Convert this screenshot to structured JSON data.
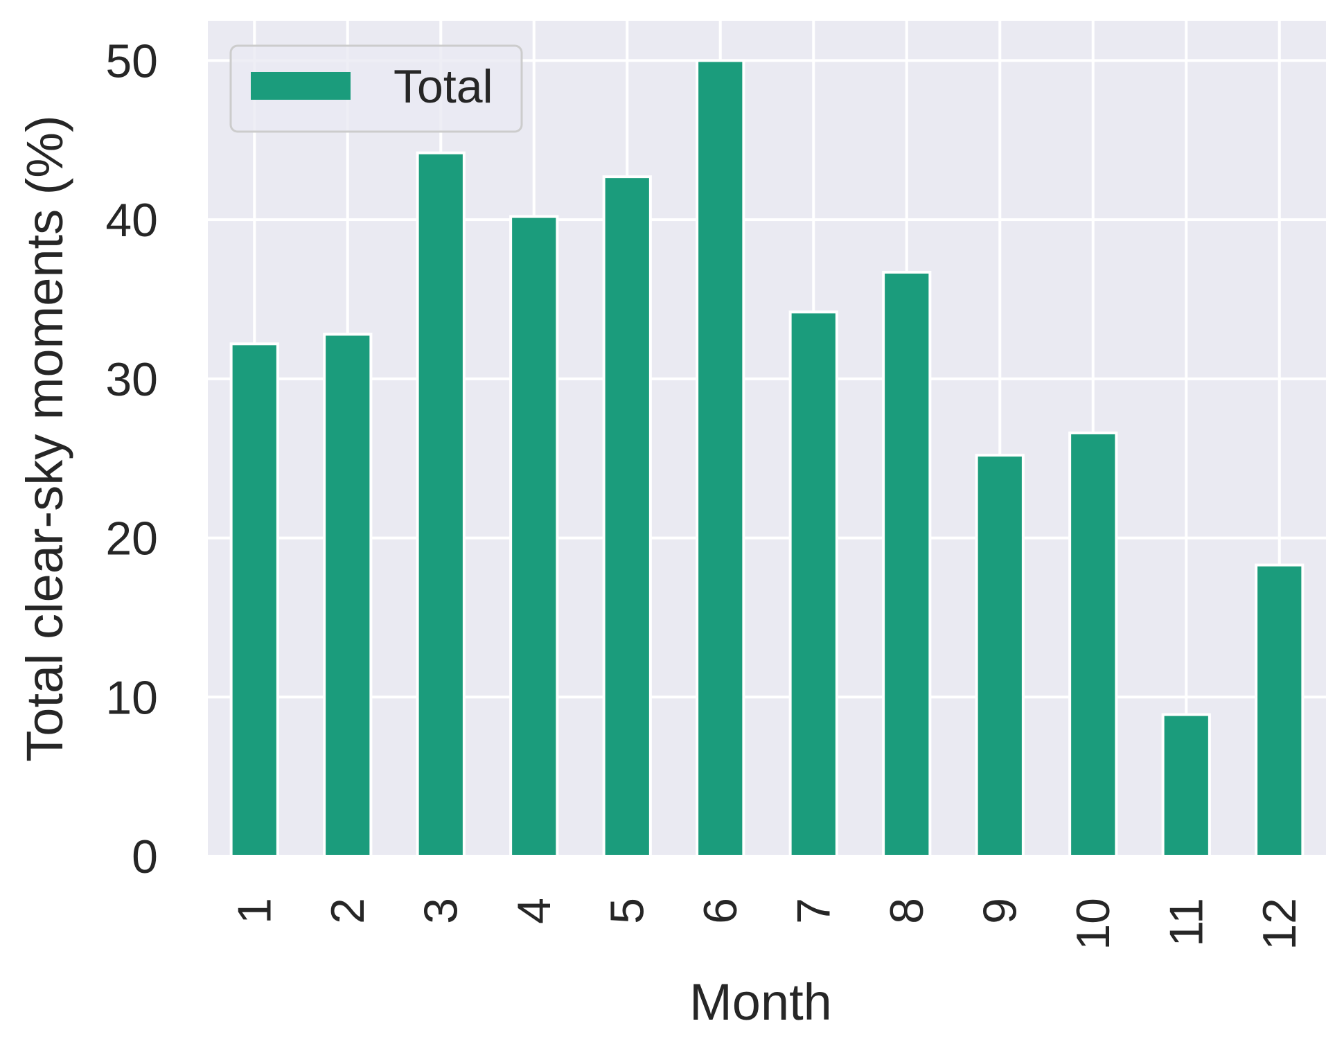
{
  "chart_data": {
    "type": "bar",
    "categories": [
      "1",
      "2",
      "3",
      "4",
      "5",
      "6",
      "7",
      "8",
      "9",
      "10",
      "11",
      "12"
    ],
    "series": [
      {
        "name": "Total",
        "values": [
          32.2,
          32.8,
          44.2,
          40.2,
          42.7,
          50.0,
          34.2,
          36.7,
          25.2,
          26.6,
          8.9,
          18.3
        ]
      }
    ],
    "title": "",
    "xlabel": "Month",
    "ylabel": "Total clear-sky moments (%)",
    "ylim": [
      0,
      52.5
    ],
    "yticks": [
      0,
      10,
      20,
      30,
      40,
      50
    ],
    "grid": true,
    "legend_position": "top-left",
    "colors": {
      "bar": "#1b9c7c",
      "background": "#eaeaf2",
      "grid": "#ffffff"
    }
  }
}
